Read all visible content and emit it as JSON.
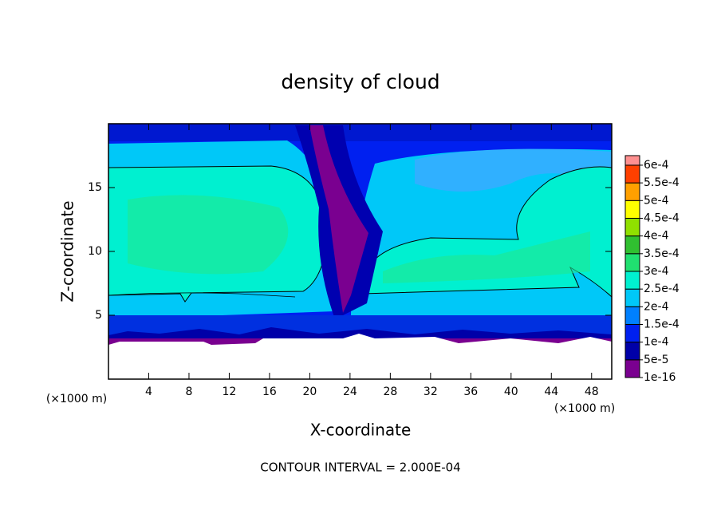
{
  "chart_data": {
    "type": "contour",
    "title": "density of cloud",
    "x_label": "X-coordinate",
    "y_label": "Z-coordinate",
    "x_unit_left": "(×1000 m)",
    "x_unit_right": "(×1000 m)",
    "footer": "CONTOUR INTERVAL = 2.000E-04",
    "xlim": [
      0,
      50
    ],
    "xticks": [
      4,
      8,
      12,
      16,
      20,
      24,
      28,
      32,
      36,
      40,
      44,
      48
    ],
    "ylim": [
      0,
      20
    ],
    "yticks": [
      5,
      10,
      15
    ],
    "colorbar": {
      "levels": [
        {
          "value": 1e-16,
          "label": "1e-16"
        },
        {
          "value": 5e-05,
          "label": "5e-5"
        },
        {
          "value": 0.0001,
          "label": "1e-4"
        },
        {
          "value": 0.00015,
          "label": "1.5e-4"
        },
        {
          "value": 0.0002,
          "label": "2e-4"
        },
        {
          "value": 0.00025,
          "label": "2.5e-4"
        },
        {
          "value": 0.0003,
          "label": "3e-4"
        },
        {
          "value": 0.00035,
          "label": "3.5e-4"
        },
        {
          "value": 0.0004,
          "label": "4e-4"
        },
        {
          "value": 0.00045,
          "label": "4.5e-4"
        },
        {
          "value": 0.0005,
          "label": "5e-4"
        },
        {
          "value": 0.00055,
          "label": "5.5e-4"
        },
        {
          "value": 0.0006,
          "label": "6e-4"
        }
      ],
      "colors": [
        "#7a0090",
        "#0000a8",
        "#0020f0",
        "#0080ff",
        "#00c8f8",
        "#00f0d0",
        "#20e070",
        "#30c030",
        "#90e000",
        "#ffff00",
        "#ffa000",
        "#ff4000",
        "#ff9090"
      ]
    }
  }
}
